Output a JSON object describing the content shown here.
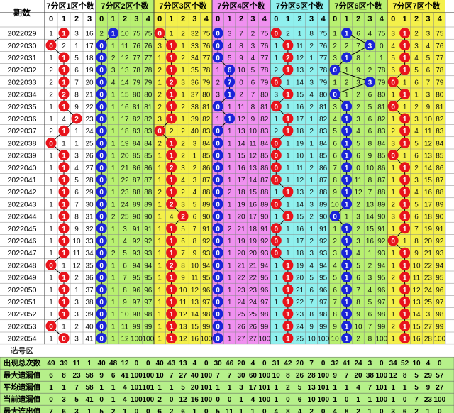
{
  "header": {
    "period_label": "期数",
    "zones": [
      "7分区1区个数",
      "7分区2区个数",
      "7分区3区个数",
      "7分区4区个数",
      "7分区5区个数",
      "7分区6区个数",
      "7分区7区个数"
    ],
    "zone_digits": [
      [
        0,
        1,
        2,
        3
      ],
      [
        0,
        1,
        2,
        3,
        4
      ],
      [
        0,
        1,
        2,
        3,
        4
      ],
      [
        0,
        1,
        2,
        3,
        4
      ],
      [
        0,
        1,
        2,
        3,
        4
      ],
      [
        0,
        1,
        2,
        3,
        4
      ],
      [
        0,
        1,
        2,
        3,
        4
      ]
    ]
  },
  "colors": {
    "red_ball": "#e8141c",
    "blue_ball": "#1a23d8",
    "line": "#000000",
    "zone_bg": [
      "#ffffff",
      "#b8f070",
      "#f4f04a",
      "#f090f0",
      "#8ff0ee",
      "#b8f070",
      "#f4f04a"
    ],
    "period_bg": "#ffffff",
    "summary_bg": "#b6f08a"
  },
  "chart_data": {
    "type": "table",
    "periods": [
      "2022029",
      "2022030",
      "2022031",
      "2022032",
      "2022033",
      "2022034",
      "2022035",
      "2022036",
      "2022037",
      "2022038",
      "2022039",
      "2022040",
      "2022041",
      "2022042",
      "2022043",
      "2022044",
      "2022045",
      "2022046",
      "2022047",
      "2022048",
      "2022049",
      "2022050",
      "2022051",
      "2022052",
      "2022053",
      "2022054"
    ],
    "zone_hits": [
      [
        1,
        2,
        1,
        1
      ],
      [
        0,
        0,
        0,
        2
      ],
      [
        1,
        1,
        1,
        1
      ],
      [
        2,
        2,
        1,
        1
      ],
      [
        2,
        2,
        2,
        1
      ],
      [
        1,
        2,
        1,
        2
      ],
      [
        2,
        2,
        1,
        0
      ],
      [
        2,
        1,
        2,
        3
      ],
      [
        1,
        0,
        0,
        3
      ],
      [
        0,
        1,
        2,
        3
      ],
      [
        1,
        2,
        1,
        1
      ],
      [
        1,
        1,
        1,
        0
      ],
      [
        1,
        2,
        1,
        1
      ],
      [
        1,
        1,
        2,
        1
      ],
      [
        1,
        0,
        2,
        0
      ],
      [
        1,
        1,
        2,
        1
      ],
      [
        1,
        1,
        1,
        2
      ],
      [
        1,
        1,
        2,
        3
      ],
      [
        1,
        2,
        2,
        0
      ],
      [
        0,
        3,
        1,
        0
      ],
      [
        2,
        3,
        1,
        1
      ],
      [
        1,
        1,
        0,
        1
      ],
      [
        1,
        1,
        1,
        1
      ],
      [
        1,
        1,
        1,
        3
      ],
      [
        0,
        1,
        2,
        1
      ],
      [
        1,
        1,
        1,
        1
      ]
    ],
    "rows": [
      [
        "1",
        "1",
        "3",
        "16",
        "2",
        "1",
        "10",
        "75",
        "75",
        "0",
        "1",
        "2",
        "32",
        "75",
        "0",
        "3",
        "7",
        "2",
        "75",
        "0",
        "2",
        "1",
        "8",
        "75",
        "1",
        "1",
        "6",
        "4",
        "75",
        "3",
        "1",
        "2",
        "3",
        "75"
      ],
      [
        "0",
        "2",
        "1",
        "17",
        "0",
        "1",
        "11",
        "76",
        "76",
        "3",
        "1",
        "1",
        "33",
        "76",
        "0",
        "4",
        "8",
        "3",
        "76",
        "1",
        "1",
        "11",
        "2",
        "76",
        "2",
        "2",
        "7",
        "3",
        "0",
        "4",
        "1",
        "3",
        "4",
        "76"
      ],
      [
        "1",
        "1",
        "5",
        "18",
        "0",
        "2",
        "12",
        "77",
        "77",
        "1",
        "1",
        "2",
        "34",
        "77",
        "0",
        "5",
        "9",
        "4",
        "77",
        "1",
        "2",
        "12",
        "1",
        "77",
        "3",
        "1",
        "8",
        "1",
        "1",
        "5",
        "1",
        "4",
        "5",
        "77"
      ],
      [
        "2",
        "1",
        "6",
        "19",
        "0",
        "3",
        "13",
        "78",
        "78",
        "2",
        "1",
        "1",
        "35",
        "78",
        "1",
        "6",
        "10",
        "5",
        "78",
        "2",
        "1",
        "13",
        "2",
        "78",
        "0",
        "1",
        "9",
        "2",
        "78",
        "6",
        "1",
        "5",
        "6",
        "78"
      ],
      [
        "2",
        "1",
        "7",
        "20",
        "0",
        "4",
        "14",
        "79",
        "79",
        "1",
        "2",
        "3",
        "36",
        "79",
        "2",
        "7",
        "0",
        "6",
        "79",
        "0",
        "1",
        "14",
        "3",
        "79",
        "1",
        "2",
        "3",
        "3",
        "79",
        "0",
        "1",
        "6",
        "7",
        "79"
      ],
      [
        "2",
        "2",
        "8",
        "21",
        "0",
        "1",
        "15",
        "80",
        "80",
        "2",
        "1",
        "1",
        "37",
        "80",
        "3",
        "1",
        "2",
        "7",
        "80",
        "3",
        "1",
        "15",
        "4",
        "80",
        "0",
        "1",
        "2",
        "6",
        "80",
        "1",
        "1",
        "1",
        "3",
        "80"
      ],
      [
        "1",
        "1",
        "9",
        "22",
        "0",
        "1",
        "16",
        "81",
        "81",
        "2",
        "1",
        "2",
        "38",
        "81",
        "0",
        "1",
        "11",
        "8",
        "81",
        "0",
        "1",
        "16",
        "2",
        "81",
        "3",
        "1",
        "2",
        "5",
        "81",
        "0",
        "1",
        "2",
        "9",
        "81"
      ],
      [
        "1",
        "4",
        "2",
        "23",
        "0",
        "1",
        "17",
        "82",
        "82",
        "3",
        "1",
        "1",
        "39",
        "82",
        "1",
        "1",
        "12",
        "9",
        "82",
        "1",
        "1",
        "17",
        "1",
        "82",
        "4",
        "1",
        "3",
        "6",
        "82",
        "1",
        "1",
        "3",
        "10",
        "82"
      ],
      [
        "2",
        "1",
        "1",
        "24",
        "0",
        "1",
        "18",
        "83",
        "83",
        "0",
        "2",
        "2",
        "40",
        "83",
        "0",
        "1",
        "13",
        "10",
        "83",
        "2",
        "1",
        "18",
        "2",
        "83",
        "5",
        "1",
        "4",
        "6",
        "83",
        "2",
        "1",
        "4",
        "11",
        "83"
      ],
      [
        "0",
        "1",
        "1",
        "25",
        "0",
        "1",
        "19",
        "84",
        "84",
        "2",
        "1",
        "2",
        "3",
        "84",
        "0",
        "1",
        "14",
        "11",
        "84",
        "0",
        "1",
        "19",
        "1",
        "84",
        "6",
        "1",
        "5",
        "8",
        "84",
        "3",
        "1",
        "5",
        "12",
        "84"
      ],
      [
        "1",
        "1",
        "3",
        "26",
        "0",
        "1",
        "20",
        "85",
        "85",
        "1",
        "1",
        "2",
        "1",
        "85",
        "0",
        "1",
        "15",
        "12",
        "85",
        "0",
        "1",
        "10",
        "1",
        "85",
        "6",
        "1",
        "6",
        "9",
        "85",
        "0",
        "1",
        "6",
        "13",
        "85"
      ],
      [
        "1",
        "1",
        "4",
        "27",
        "0",
        "1",
        "21",
        "86",
        "86",
        "1",
        "2",
        "3",
        "2",
        "86",
        "0",
        "1",
        "16",
        "13",
        "86",
        "0",
        "1",
        "11",
        "2",
        "86",
        "7",
        "1",
        "0",
        "10",
        "86",
        "1",
        "1",
        "2",
        "14",
        "86"
      ],
      [
        "1",
        "1",
        "5",
        "28",
        "0",
        "1",
        "22",
        "87",
        "87",
        "1",
        "1",
        "4",
        "3",
        "87",
        "0",
        "1",
        "17",
        "14",
        "87",
        "0",
        "1",
        "12",
        "1",
        "87",
        "8",
        "1",
        "11",
        "8",
        "87",
        "1",
        "1",
        "3",
        "15",
        "87"
      ],
      [
        "1",
        "1",
        "6",
        "29",
        "0",
        "1",
        "23",
        "88",
        "88",
        "2",
        "1",
        "2",
        "4",
        "88",
        "0",
        "2",
        "18",
        "15",
        "88",
        "1",
        "1",
        "13",
        "2",
        "88",
        "9",
        "1",
        "12",
        "7",
        "88",
        "1",
        "1",
        "4",
        "16",
        "88"
      ],
      [
        "1",
        "1",
        "7",
        "30",
        "0",
        "1",
        "24",
        "89",
        "89",
        "1",
        "2",
        "3",
        "5",
        "89",
        "0",
        "1",
        "19",
        "16",
        "89",
        "0",
        "1",
        "14",
        "3",
        "89",
        "10",
        "1",
        "2",
        "13",
        "89",
        "2",
        "1",
        "5",
        "17",
        "89"
      ],
      [
        "1",
        "1",
        "8",
        "31",
        "0",
        "2",
        "25",
        "90",
        "90",
        "1",
        "4",
        "2",
        "6",
        "90",
        "0",
        "1",
        "20",
        "17",
        "90",
        "1",
        "1",
        "15",
        "2",
        "90",
        "0",
        "1",
        "3",
        "14",
        "90",
        "3",
        "1",
        "6",
        "18",
        "90"
      ],
      [
        "1",
        "1",
        "9",
        "32",
        "0",
        "1",
        "3",
        "91",
        "91",
        "1",
        "1",
        "5",
        "7",
        "91",
        "0",
        "2",
        "21",
        "18",
        "91",
        "0",
        "1",
        "16",
        "1",
        "91",
        "1",
        "1",
        "2",
        "15",
        "91",
        "1",
        "1",
        "7",
        "19",
        "91"
      ],
      [
        "1",
        "1",
        "10",
        "33",
        "0",
        "1",
        "4",
        "92",
        "92",
        "1",
        "1",
        "6",
        "8",
        "92",
        "0",
        "1",
        "19",
        "19",
        "92",
        "0",
        "1",
        "17",
        "2",
        "92",
        "2",
        "1",
        "3",
        "16",
        "92",
        "0",
        "1",
        "8",
        "20",
        "92"
      ],
      [
        "1",
        "1",
        "11",
        "34",
        "0",
        "2",
        "5",
        "93",
        "93",
        "1",
        "1",
        "7",
        "9",
        "93",
        "0",
        "1",
        "20",
        "20",
        "93",
        "0",
        "1",
        "18",
        "3",
        "93",
        "3",
        "1",
        "4",
        "1",
        "93",
        "1",
        "1",
        "9",
        "21",
        "93"
      ],
      [
        "0",
        "1",
        "12",
        "35",
        "0",
        "1",
        "6",
        "94",
        "94",
        "1",
        "2",
        "8",
        "10",
        "94",
        "0",
        "1",
        "21",
        "21",
        "94",
        "1",
        "1",
        "19",
        "4",
        "94",
        "4",
        "1",
        "5",
        "2",
        "94",
        "1",
        "1",
        "10",
        "22",
        "94"
      ],
      [
        "1",
        "1",
        "2",
        "36",
        "0",
        "1",
        "7",
        "95",
        "95",
        "1",
        "1",
        "9",
        "11",
        "95",
        "0",
        "1",
        "22",
        "22",
        "95",
        "1",
        "1",
        "20",
        "5",
        "95",
        "5",
        "1",
        "6",
        "3",
        "95",
        "2",
        "1",
        "11",
        "23",
        "95"
      ],
      [
        "1",
        "1",
        "1",
        "37",
        "0",
        "1",
        "8",
        "96",
        "96",
        "1",
        "1",
        "10",
        "12",
        "96",
        "0",
        "1",
        "23",
        "23",
        "96",
        "1",
        "1",
        "21",
        "6",
        "96",
        "6",
        "1",
        "7",
        "4",
        "96",
        "1",
        "1",
        "12",
        "24",
        "96"
      ],
      [
        "1",
        "1",
        "3",
        "38",
        "0",
        "1",
        "9",
        "97",
        "97",
        "1",
        "1",
        "11",
        "13",
        "97",
        "0",
        "1",
        "24",
        "24",
        "97",
        "1",
        "1",
        "22",
        "7",
        "97",
        "7",
        "1",
        "8",
        "5",
        "97",
        "1",
        "1",
        "13",
        "25",
        "97"
      ],
      [
        "1",
        "1",
        "3",
        "39",
        "0",
        "1",
        "10",
        "98",
        "98",
        "1",
        "1",
        "12",
        "14",
        "98",
        "0",
        "1",
        "25",
        "25",
        "98",
        "1",
        "1",
        "23",
        "8",
        "98",
        "8",
        "1",
        "9",
        "6",
        "98",
        "1",
        "1",
        "14",
        "3",
        "98"
      ],
      [
        "0",
        "1",
        "2",
        "40",
        "0",
        "1",
        "11",
        "99",
        "99",
        "1",
        "1",
        "13",
        "15",
        "99",
        "0",
        "1",
        "26",
        "26",
        "99",
        "1",
        "1",
        "24",
        "9",
        "99",
        "9",
        "1",
        "10",
        "7",
        "99",
        "2",
        "1",
        "15",
        "27",
        "99"
      ],
      [
        "1",
        "0",
        "3",
        "41",
        "0",
        "1",
        "12",
        "100",
        "100",
        "1",
        "1",
        "12",
        "16",
        "100",
        "0",
        "1",
        "27",
        "27",
        "100",
        "1",
        "1",
        "25",
        "10",
        "100",
        "10",
        "1",
        "2",
        "8",
        "100",
        "1",
        "1",
        "16",
        "28",
        "100"
      ]
    ],
    "select_label": "选号区",
    "stat_labels": [
      "出现总次数",
      "最大遗漏值",
      "平均遗漏值",
      "当前遗漏值",
      "最大连出值"
    ],
    "stats": [
      [
        "49",
        "39",
        "11",
        "1",
        "40",
        "48",
        "12",
        "0",
        "0",
        "40",
        "43",
        "13",
        "4",
        "0",
        "30",
        "46",
        "20",
        "4",
        "0",
        "31",
        "42",
        "20",
        "7",
        "0",
        "32",
        "41",
        "24",
        "3",
        "0",
        "34",
        "52",
        "10",
        "4",
        "0"
      ],
      [
        "6",
        "8",
        "23",
        "58",
        "9",
        "6",
        "41",
        "100",
        "100",
        "10",
        "7",
        "27",
        "40",
        "100",
        "7",
        "7",
        "30",
        "60",
        "100",
        "10",
        "8",
        "26",
        "28",
        "100",
        "9",
        "7",
        "20",
        "38",
        "100",
        "12",
        "8",
        "5",
        "29",
        "57"
      ],
      [
        "1",
        "1",
        "7",
        "58",
        "1",
        "1",
        "4",
        "101",
        "101",
        "1",
        "1",
        "5",
        "20",
        "101",
        "1",
        "1",
        "3",
        "17",
        "101",
        "1",
        "2",
        "5",
        "13",
        "101",
        "1",
        "1",
        "4",
        "7",
        "101",
        "1",
        "1",
        "5",
        "9",
        "27"
      ],
      [
        "0",
        "3",
        "5",
        "41",
        "0",
        "1",
        "4",
        "100",
        "100",
        "2",
        "0",
        "12",
        "16",
        "100",
        "0",
        "0",
        "1",
        "4",
        "100",
        "1",
        "0",
        "6",
        "10",
        "100",
        "1",
        "0",
        "1",
        "1",
        "100",
        "1",
        "0",
        "7",
        "23",
        "100"
      ],
      [
        "7",
        "6",
        "3",
        "1",
        "5",
        "2",
        "1",
        "0",
        "0",
        "6",
        "2",
        "6",
        "1",
        "0",
        "5",
        "11",
        "1",
        "1",
        "0",
        "4",
        "8",
        "4",
        "2",
        "0",
        "4",
        "8",
        "2",
        "1",
        "0",
        "3",
        "6",
        "2",
        "1",
        "0"
      ]
    ]
  }
}
